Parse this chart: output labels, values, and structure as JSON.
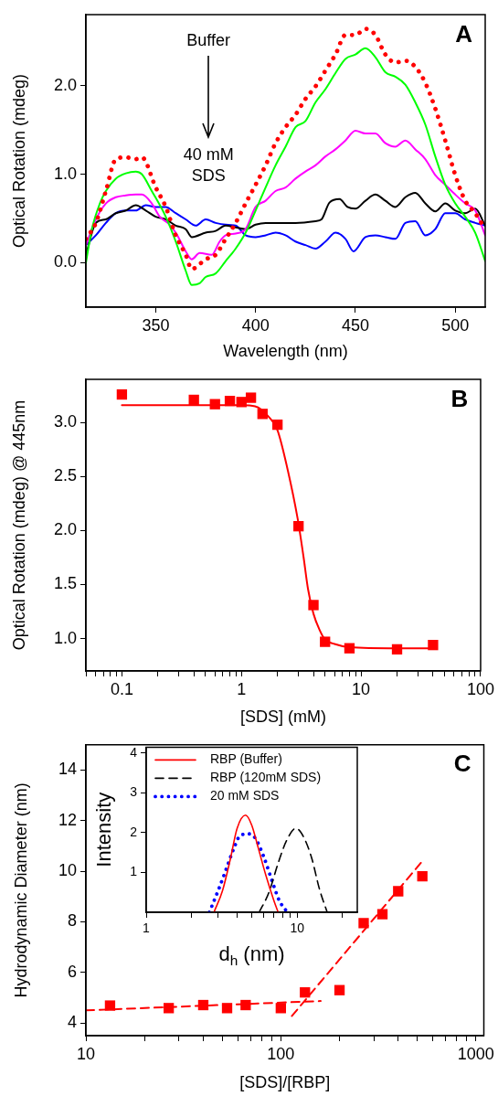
{
  "chart_data": [
    {
      "type": "line",
      "xlabel": "Wavelength (nm)",
      "ylabel": "Optical Rotation (mdeg)",
      "xlim": [
        315,
        515
      ],
      "xticks": [
        350,
        400,
        450,
        500
      ],
      "ylim": [
        -0.5,
        2.8
      ],
      "yticks": [
        {
          "value": 0,
          "label": "0.0"
        },
        {
          "value": 1,
          "label": "1.0"
        },
        {
          "value": 2,
          "label": "2.0"
        }
      ],
      "grid": false,
      "annotations": [
        "Buffer",
        "40 mM SDS",
        "A"
      ],
      "series": [
        {
          "color": "#ff0000",
          "line_style": "dotted",
          "x": [
            315,
            320,
            325,
            330,
            335,
            340,
            343,
            350,
            355,
            360,
            365,
            368,
            375,
            380,
            385,
            390,
            395,
            400,
            405,
            410,
            415,
            420,
            425,
            430,
            435,
            440,
            445,
            450,
            455,
            460,
            465,
            470,
            475,
            480,
            485,
            490,
            495,
            500,
            505,
            510,
            515
          ],
          "values": [
            0.27,
            0.45,
            0.81,
            1.17,
            1.19,
            1.17,
            1.19,
            0.85,
            0.63,
            0.31,
            0.09,
            -0.07,
            0.04,
            0.09,
            0.27,
            0.45,
            0.67,
            0.88,
            1.1,
            1.35,
            1.53,
            1.67,
            1.85,
            1.99,
            2.17,
            2.35,
            2.57,
            2.57,
            2.64,
            2.57,
            2.35,
            2.26,
            2.28,
            2.21,
            2.03,
            1.74,
            1.38,
            0.99,
            0.7,
            0.56,
            0.38
          ]
        },
        {
          "color": "#00ff00",
          "x": [
            315,
            318,
            322,
            325,
            330,
            335,
            340,
            343,
            348,
            355,
            360,
            365,
            368,
            372,
            375,
            380,
            385,
            390,
            395,
            400,
            405,
            410,
            415,
            420,
            425,
            430,
            435,
            440,
            445,
            450,
            455,
            460,
            465,
            470,
            475,
            480,
            485,
            490,
            495,
            500,
            505,
            510,
            515
          ],
          "values": [
            0,
            0.38,
            0.67,
            0.81,
            0.95,
            1.01,
            1.03,
            1.0,
            0.81,
            0.52,
            0.24,
            -0.09,
            -0.25,
            -0.23,
            -0.16,
            -0.12,
            0.02,
            0.16,
            0.34,
            0.59,
            0.85,
            1.1,
            1.31,
            1.53,
            1.6,
            1.81,
            1.96,
            2.14,
            2.3,
            2.35,
            2.42,
            2.32,
            2.15,
            2.1,
            2.01,
            1.81,
            1.56,
            1.2,
            0.88,
            0.67,
            0.52,
            0.34,
            0.02
          ]
        },
        {
          "color": "#ff00ff",
          "x": [
            315,
            320,
            325,
            330,
            335,
            340,
            343,
            348,
            352,
            356,
            360,
            365,
            368,
            372,
            378,
            382,
            385,
            390,
            395,
            400,
            405,
            410,
            415,
            420,
            425,
            430,
            435,
            440,
            445,
            450,
            455,
            460,
            465,
            470,
            475,
            480,
            485,
            490,
            495,
            500,
            505,
            510,
            515
          ],
          "values": [
            0.2,
            0.49,
            0.67,
            0.74,
            0.76,
            0.77,
            0.77,
            0.67,
            0.52,
            0.45,
            0.34,
            0.13,
            0.04,
            0.11,
            0.09,
            0.24,
            0.31,
            0.33,
            0.38,
            0.63,
            0.7,
            0.81,
            0.85,
            0.95,
            1.03,
            1.1,
            1.2,
            1.28,
            1.38,
            1.49,
            1.46,
            1.46,
            1.35,
            1.31,
            1.38,
            1.28,
            1.17,
            0.99,
            0.88,
            0.77,
            0.67,
            0.59,
            0.31
          ]
        },
        {
          "color": "#000000",
          "x": [
            315,
            320,
            325,
            330,
            335,
            340,
            345,
            350,
            355,
            360,
            365,
            368,
            375,
            380,
            385,
            390,
            395,
            400,
            405,
            410,
            420,
            430,
            433,
            437,
            442,
            446,
            450,
            455,
            460,
            465,
            470,
            475,
            480,
            485,
            490,
            495,
            500,
            505,
            510,
            515
          ],
          "values": [
            0.09,
            0.45,
            0.49,
            0.56,
            0.59,
            0.65,
            0.59,
            0.52,
            0.49,
            0.42,
            0.38,
            0.29,
            0.34,
            0.36,
            0.42,
            0.4,
            0.38,
            0.43,
            0.45,
            0.45,
            0.45,
            0.47,
            0.49,
            0.68,
            0.72,
            0.63,
            0.61,
            0.7,
            0.77,
            0.7,
            0.63,
            0.74,
            0.79,
            0.67,
            0.58,
            0.67,
            0.59,
            0.56,
            0.61,
            0.42
          ]
        },
        {
          "color": "#0000ff",
          "x": [
            315,
            320,
            325,
            330,
            335,
            340,
            345,
            350,
            355,
            360,
            365,
            370,
            375,
            380,
            385,
            390,
            395,
            400,
            405,
            410,
            415,
            420,
            425,
            430,
            435,
            440,
            445,
            449,
            455,
            460,
            465,
            470,
            475,
            480,
            485,
            490,
            495,
            500,
            505,
            510,
            515
          ],
          "values": [
            0.2,
            0.31,
            0.45,
            0.56,
            0.59,
            0.59,
            0.65,
            0.63,
            0.63,
            0.56,
            0.49,
            0.42,
            0.49,
            0.45,
            0.43,
            0.42,
            0.31,
            0.29,
            0.31,
            0.34,
            0.31,
            0.24,
            0.2,
            0.16,
            0.24,
            0.34,
            0.27,
            0.13,
            0.29,
            0.31,
            0.29,
            0.27,
            0.45,
            0.47,
            0.31,
            0.38,
            0.56,
            0.56,
            0.49,
            0.45,
            0.42
          ]
        }
      ]
    },
    {
      "type": "scatter",
      "xlabel": "[SDS] (mM)",
      "ylabel": "Optical Rotation (mdeg) @ 445nm",
      "log": "x",
      "xlim": [
        0.05,
        100
      ],
      "xticks": [
        {
          "value": 0.05,
          "label": null
        },
        {
          "value": 0.06,
          "label": null
        },
        {
          "value": 0.07,
          "label": null
        },
        {
          "value": 0.08,
          "label": null
        },
        {
          "value": 0.09,
          "label": null
        },
        0.1,
        {
          "value": 0.2,
          "label": null
        },
        {
          "value": 0.3,
          "label": null
        },
        {
          "value": 0.4,
          "label": null
        },
        {
          "value": 0.5,
          "label": null
        },
        {
          "value": 0.6,
          "label": null
        },
        {
          "value": 0.7,
          "label": null
        },
        {
          "value": 0.8,
          "label": null
        },
        {
          "value": 0.9,
          "label": null
        },
        1,
        {
          "value": 2,
          "label": null
        },
        {
          "value": 3,
          "label": null
        },
        {
          "value": 4,
          "label": null
        },
        {
          "value": 5,
          "label": null
        },
        {
          "value": 6,
          "label": null
        },
        {
          "value": 7,
          "label": null
        },
        {
          "value": 8,
          "label": null
        },
        {
          "value": 9,
          "label": null
        },
        10,
        {
          "value": 20,
          "label": null
        },
        {
          "value": 30,
          "label": null
        },
        {
          "value": 40,
          "label": null
        },
        {
          "value": 50,
          "label": null
        },
        {
          "value": 60,
          "label": null
        },
        {
          "value": 70,
          "label": null
        },
        {
          "value": 80,
          "label": null
        },
        {
          "value": 90,
          "label": null
        },
        100
      ],
      "ylim": [
        0.7,
        3.4
      ],
      "yticks": [
        {
          "value": 1,
          "label": "1.0"
        },
        1.5,
        {
          "value": 2,
          "label": "2.0"
        },
        2.5,
        {
          "value": 3,
          "label": "3.0"
        }
      ],
      "grid": false,
      "annotations": [
        "B"
      ],
      "series": [
        {
          "color": "#ff0000",
          "marker": "square",
          "x": [
            0.1,
            0.4,
            0.6,
            0.8,
            1.0,
            1.2,
            1.5,
            2.0,
            3.0,
            4.0,
            5.0,
            8,
            20,
            40
          ],
          "values": [
            3.26,
            3.21,
            3.17,
            3.2,
            3.19,
            3.23,
            3.08,
            2.98,
            2.04,
            1.31,
            0.97,
            0.91,
            0.9,
            0.94
          ]
        },
        {
          "type": "line",
          "color": "#ff0000",
          "x": [
            0.1,
            1.0,
            1.3,
            1.7,
            2.0,
            2.45,
            2.95,
            3.3,
            3.6,
            4.0,
            4.5,
            5,
            6,
            8,
            20,
            40
          ],
          "values": [
            3.16,
            3.16,
            3.15,
            3.05,
            2.93,
            2.55,
            2.11,
            1.76,
            1.46,
            1.23,
            1.08,
            0.99,
            0.95,
            0.92,
            0.91,
            0.91
          ]
        }
      ]
    },
    {
      "type": "scatter",
      "xlabel": "[SDS]/[RBP]",
      "ylabel": "Hydrodynamic Diameter (nm)",
      "log": "x",
      "xlim": [
        10,
        1100
      ],
      "xticks": [
        10,
        {
          "value": 20,
          "label": null
        },
        {
          "value": 30,
          "label": null
        },
        {
          "value": 40,
          "label": null
        },
        {
          "value": 50,
          "label": null
        },
        {
          "value": 60,
          "label": null
        },
        {
          "value": 70,
          "label": null
        },
        {
          "value": 80,
          "label": null
        },
        {
          "value": 90,
          "label": null
        },
        100,
        {
          "value": 200,
          "label": null
        },
        {
          "value": 300,
          "label": null
        },
        {
          "value": 400,
          "label": null
        },
        {
          "value": 500,
          "label": null
        },
        {
          "value": 600,
          "label": null
        },
        {
          "value": 700,
          "label": null
        },
        {
          "value": 800,
          "label": null
        },
        {
          "value": 900,
          "label": null
        },
        1000
      ],
      "ylim": [
        3.5,
        15
      ],
      "yticks": [
        4,
        6,
        8,
        10,
        12,
        14
      ],
      "grid": false,
      "annotations": [
        "C"
      ],
      "series": [
        {
          "color": "#ff0000",
          "marker": "square",
          "x": [
            13.3,
            26.6,
            40,
            53,
            66,
            100,
            133,
            200,
            266,
            332,
            400,
            532
          ],
          "values": [
            4.69,
            4.59,
            4.71,
            4.59,
            4.71,
            4.59,
            5.21,
            5.3,
            7.95,
            8.3,
            9.21,
            9.8
          ]
        },
        {
          "type": "line",
          "color": "#ff0000",
          "line_style": "dashed",
          "x": [
            10,
            160
          ],
          "values": [
            4.5,
            4.87
          ]
        },
        {
          "type": "line",
          "color": "#ff0000",
          "line_style": "dashed",
          "x": [
            114,
            532
          ],
          "values": [
            4.28,
            10.4
          ]
        }
      ]
    },
    {
      "type": "line",
      "xlabel": "d$_{h}$ (nm)",
      "ylabel": "Intensity",
      "log": "x",
      "xlim": [
        1,
        25
      ],
      "xticks": [
        1,
        {
          "value": 2,
          "label": null
        },
        {
          "value": 3,
          "label": null
        },
        {
          "value": 4,
          "label": null
        },
        {
          "value": 5,
          "label": null
        },
        {
          "value": 6,
          "label": null
        },
        {
          "value": 7,
          "label": null
        },
        {
          "value": 8,
          "label": null
        },
        {
          "value": 9,
          "label": null
        },
        10,
        {
          "value": 20,
          "label": null
        }
      ],
      "ylim": [
        0,
        4.15
      ],
      "yticks": [
        1,
        2,
        3,
        4
      ],
      "grid": false,
      "legend": "top left",
      "series": [
        {
          "name": "RBP (Buffer)",
          "color": "#ff0000",
          "line_style": "solid",
          "x": [
            2.81,
            3.2,
            3.6,
            4.0,
            4.55,
            5.0,
            5.5,
            6.2,
            7.0,
            7.48
          ],
          "values": [
            0,
            0.54,
            1.32,
            2.11,
            2.44,
            2.19,
            1.64,
            0.93,
            0.3,
            0
          ]
        },
        {
          "name": "RBP (120mM SDS)",
          "color": "#000000",
          "line_style": "dashed",
          "x": [
            5.6,
            6.5,
            7.5,
            8.5,
            9.8,
            11,
            12.5,
            14,
            15.8
          ],
          "values": [
            0,
            0.5,
            1.25,
            1.8,
            2.11,
            1.9,
            1.35,
            0.6,
            0
          ]
        },
        {
          "name": "20 mM SDS",
          "color": "#0000ff",
          "line_style": "dotted",
          "x": [
            2.62,
            3.0,
            3.4,
            3.8,
            4.2,
            4.8,
            5.3,
            6.0,
            6.8,
            7.6,
            8.6
          ],
          "values": [
            0,
            0.55,
            1.1,
            1.6,
            1.93,
            1.97,
            1.85,
            1.4,
            0.8,
            0.3,
            0
          ]
        }
      ]
    }
  ]
}
